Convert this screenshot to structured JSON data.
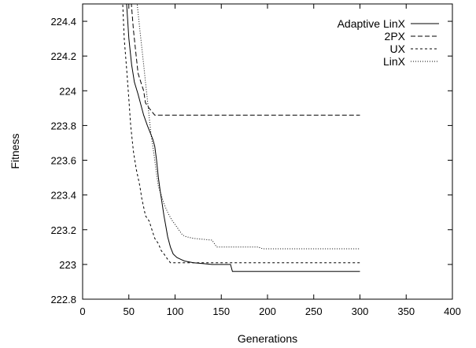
{
  "chart_data": {
    "type": "line",
    "title": "",
    "xlabel": "Generations",
    "ylabel": "Fitness",
    "xlim": [
      0,
      400
    ],
    "ylim": [
      222.8,
      224.5
    ],
    "x_ticks": [
      0,
      50,
      100,
      150,
      200,
      250,
      300,
      350,
      400
    ],
    "y_ticks": [
      222.8,
      223,
      223.2,
      223.4,
      223.6,
      223.8,
      224,
      224.2,
      224.4
    ],
    "y_tick_labels": [
      "222.8",
      "223",
      "223.2",
      "223.4",
      "223.6",
      "223.8",
      "224",
      "224.2",
      "224.4"
    ],
    "grid": false,
    "legend_position": "top-right",
    "series": [
      {
        "name": "Adaptive LinX",
        "dash": "solid",
        "points": [
          [
            47,
            224.55
          ],
          [
            50,
            224.3
          ],
          [
            53,
            224.15
          ],
          [
            56,
            224.05
          ],
          [
            60,
            223.98
          ],
          [
            63,
            223.92
          ],
          [
            66,
            223.86
          ],
          [
            70,
            223.8
          ],
          [
            73,
            223.76
          ],
          [
            76,
            223.72
          ],
          [
            78,
            223.68
          ],
          [
            80,
            223.6
          ],
          [
            82,
            223.5
          ],
          [
            84,
            223.42
          ],
          [
            86,
            223.35
          ],
          [
            88,
            223.28
          ],
          [
            90,
            223.22
          ],
          [
            92,
            223.16
          ],
          [
            95,
            223.1
          ],
          [
            98,
            223.06
          ],
          [
            102,
            223.04
          ],
          [
            106,
            223.03
          ],
          [
            110,
            223.02
          ],
          [
            120,
            223.01
          ],
          [
            130,
            223.005
          ],
          [
            140,
            223.0
          ],
          [
            160,
            223.0
          ],
          [
            162,
            222.96
          ],
          [
            200,
            222.96
          ],
          [
            250,
            222.96
          ],
          [
            300,
            222.96
          ]
        ]
      },
      {
        "name": "2PX",
        "dash": "dash",
        "points": [
          [
            52,
            224.55
          ],
          [
            55,
            224.35
          ],
          [
            58,
            224.2
          ],
          [
            60,
            224.1
          ],
          [
            63,
            224.05
          ],
          [
            66,
            224.0
          ],
          [
            68,
            223.93
          ],
          [
            72,
            223.9
          ],
          [
            75,
            223.88
          ],
          [
            78,
            223.86
          ],
          [
            120,
            223.86
          ],
          [
            200,
            223.86
          ],
          [
            300,
            223.86
          ]
        ]
      },
      {
        "name": "UX",
        "dash": "short-dash",
        "points": [
          [
            43,
            224.55
          ],
          [
            45,
            224.3
          ],
          [
            48,
            224.1
          ],
          [
            50,
            223.95
          ],
          [
            52,
            223.8
          ],
          [
            55,
            223.65
          ],
          [
            58,
            223.55
          ],
          [
            60,
            223.5
          ],
          [
            62,
            223.45
          ],
          [
            64,
            223.38
          ],
          [
            66,
            223.33
          ],
          [
            68,
            223.28
          ],
          [
            72,
            223.25
          ],
          [
            75,
            223.2
          ],
          [
            78,
            223.15
          ],
          [
            82,
            223.12
          ],
          [
            85,
            223.08
          ],
          [
            88,
            223.06
          ],
          [
            92,
            223.03
          ],
          [
            95,
            223.01
          ],
          [
            100,
            223.01
          ],
          [
            200,
            223.01
          ],
          [
            300,
            223.01
          ]
        ]
      },
      {
        "name": "LinX",
        "dash": "dot",
        "points": [
          [
            58,
            224.55
          ],
          [
            60,
            224.45
          ],
          [
            62,
            224.35
          ],
          [
            64,
            224.25
          ],
          [
            66,
            224.15
          ],
          [
            68,
            224.05
          ],
          [
            70,
            223.95
          ],
          [
            72,
            223.85
          ],
          [
            74,
            223.75
          ],
          [
            76,
            223.68
          ],
          [
            78,
            223.6
          ],
          [
            80,
            223.52
          ],
          [
            82,
            223.45
          ],
          [
            85,
            223.4
          ],
          [
            88,
            223.35
          ],
          [
            92,
            223.3
          ],
          [
            96,
            223.26
          ],
          [
            100,
            223.23
          ],
          [
            104,
            223.2
          ],
          [
            108,
            223.17
          ],
          [
            112,
            223.16
          ],
          [
            120,
            223.15
          ],
          [
            140,
            223.14
          ],
          [
            145,
            223.1
          ],
          [
            190,
            223.1
          ],
          [
            195,
            223.09
          ],
          [
            250,
            223.09
          ],
          [
            300,
            223.09
          ]
        ]
      }
    ]
  }
}
